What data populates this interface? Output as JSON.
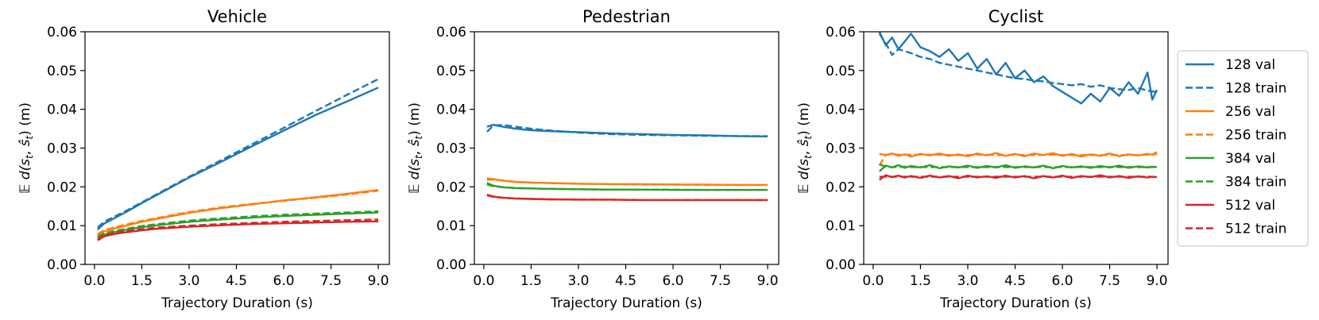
{
  "figure": {
    "legend": {
      "placement": "right",
      "entries": [
        {
          "label": "128 val",
          "color": "#1f77b4",
          "dash": false
        },
        {
          "label": "128 train",
          "color": "#1f77b4",
          "dash": true
        },
        {
          "label": "256 val",
          "color": "#ff7f0e",
          "dash": false
        },
        {
          "label": "256 train",
          "color": "#ff7f0e",
          "dash": true
        },
        {
          "label": "384 val",
          "color": "#2ca02c",
          "dash": false
        },
        {
          "label": "384 train",
          "color": "#2ca02c",
          "dash": true
        },
        {
          "label": "512 val",
          "color": "#d62728",
          "dash": false
        },
        {
          "label": "512 train",
          "color": "#d62728",
          "dash": true
        }
      ]
    }
  },
  "chart_data": [
    {
      "type": "line",
      "title": "Vehicle",
      "xlabel": "Trajectory Duration (s)",
      "ylabel": "E d(s_t, ŝ_t) (m)",
      "xlim": [
        -0.3,
        9.35
      ],
      "ylim": [
        0,
        0.06
      ],
      "xticks": [
        "0.0",
        "1.5",
        "3.0",
        "4.5",
        "6.0",
        "7.5",
        "9.0"
      ],
      "yticks": [
        "0.00",
        "0.01",
        "0.02",
        "0.03",
        "0.04",
        "0.05",
        "0.06"
      ],
      "grid": false,
      "x": [
        0.1,
        0.3,
        0.6,
        1.0,
        1.5,
        2.0,
        3.0,
        4.0,
        5.0,
        6.0,
        7.0,
        8.0,
        9.0
      ],
      "series": [
        {
          "name": "128 val",
          "color": "#1f77b4",
          "dash": false,
          "values": [
            0.009,
            0.0105,
            0.0118,
            0.0135,
            0.0158,
            0.018,
            0.0224,
            0.0264,
            0.0305,
            0.0345,
            0.0385,
            0.042,
            0.0456
          ]
        },
        {
          "name": "128 train",
          "color": "#1f77b4",
          "dash": true,
          "values": [
            0.0095,
            0.011,
            0.0122,
            0.0138,
            0.016,
            0.0182,
            0.0226,
            0.0268,
            0.031,
            0.0352,
            0.0395,
            0.0437,
            0.0478
          ]
        },
        {
          "name": "256 val",
          "color": "#ff7f0e",
          "dash": false,
          "values": [
            0.0075,
            0.0085,
            0.0092,
            0.01,
            0.011,
            0.0118,
            0.0133,
            0.0145,
            0.0155,
            0.0165,
            0.0173,
            0.0182,
            0.0192
          ]
        },
        {
          "name": "256 train",
          "color": "#ff7f0e",
          "dash": true,
          "values": [
            0.0078,
            0.0088,
            0.0095,
            0.0103,
            0.0112,
            0.012,
            0.0135,
            0.0147,
            0.0156,
            0.0164,
            0.0172,
            0.018,
            0.019
          ]
        },
        {
          "name": "384 val",
          "color": "#2ca02c",
          "dash": false,
          "values": [
            0.0068,
            0.0077,
            0.0083,
            0.0089,
            0.0096,
            0.0101,
            0.011,
            0.0116,
            0.0121,
            0.0125,
            0.0128,
            0.0131,
            0.0134
          ]
        },
        {
          "name": "384 train",
          "color": "#2ca02c",
          "dash": true,
          "values": [
            0.0072,
            0.008,
            0.0086,
            0.0092,
            0.0099,
            0.0104,
            0.0113,
            0.0119,
            0.0124,
            0.0128,
            0.0131,
            0.0134,
            0.0137
          ]
        },
        {
          "name": "512 val",
          "color": "#d62728",
          "dash": false,
          "values": [
            0.0062,
            0.0072,
            0.0078,
            0.0083,
            0.0088,
            0.0092,
            0.0097,
            0.0101,
            0.0104,
            0.0106,
            0.0108,
            0.011,
            0.0111
          ]
        },
        {
          "name": "512 train",
          "color": "#d62728",
          "dash": true,
          "values": [
            0.0065,
            0.0075,
            0.0081,
            0.0086,
            0.0091,
            0.0095,
            0.01,
            0.0104,
            0.0107,
            0.011,
            0.0112,
            0.0114,
            0.0116
          ]
        }
      ]
    },
    {
      "type": "line",
      "title": "Pedestrian",
      "xlabel": "Trajectory Duration (s)",
      "ylabel": "E d(s_t, ŝ_t) (m)",
      "xlim": [
        -0.3,
        9.35
      ],
      "ylim": [
        0,
        0.06
      ],
      "xticks": [
        "0.0",
        "1.5",
        "3.0",
        "4.5",
        "6.0",
        "7.5",
        "9.0"
      ],
      "yticks": [
        "0.00",
        "0.01",
        "0.02",
        "0.03",
        "0.04",
        "0.05",
        "0.06"
      ],
      "grid": false,
      "x": [
        0.1,
        0.3,
        0.6,
        1.0,
        1.5,
        2.0,
        3.0,
        4.0,
        5.0,
        6.0,
        7.0,
        8.0,
        9.0
      ],
      "series": [
        {
          "name": "128 val",
          "color": "#1f77b4",
          "dash": false,
          "values": [
            0.0355,
            0.036,
            0.0355,
            0.035,
            0.0346,
            0.0344,
            0.0341,
            0.0338,
            0.0336,
            0.0334,
            0.0333,
            0.0331,
            0.033
          ]
        },
        {
          "name": "128 train",
          "color": "#1f77b4",
          "dash": true,
          "values": [
            0.0342,
            0.0358,
            0.036,
            0.0355,
            0.035,
            0.0346,
            0.034,
            0.0336,
            0.0334,
            0.0333,
            0.0332,
            0.0331,
            0.0331
          ]
        },
        {
          "name": "256 val",
          "color": "#ff7f0e",
          "dash": false,
          "values": [
            0.0222,
            0.022,
            0.0216,
            0.0213,
            0.0211,
            0.021,
            0.0208,
            0.0207,
            0.0207,
            0.0206,
            0.0206,
            0.0205,
            0.0205
          ]
        },
        {
          "name": "256 train",
          "color": "#ff7f0e",
          "dash": true,
          "values": [
            0.0218,
            0.0219,
            0.0216,
            0.0213,
            0.0211,
            0.021,
            0.0208,
            0.0207,
            0.0206,
            0.0206,
            0.0205,
            0.0205,
            0.0205
          ]
        },
        {
          "name": "384 val",
          "color": "#2ca02c",
          "dash": false,
          "values": [
            0.021,
            0.0203,
            0.0199,
            0.0197,
            0.0196,
            0.0195,
            0.0194,
            0.0193,
            0.0193,
            0.0192,
            0.0192,
            0.0192,
            0.0192
          ]
        },
        {
          "name": "384 train",
          "color": "#2ca02c",
          "dash": true,
          "values": [
            0.0206,
            0.0202,
            0.0199,
            0.0197,
            0.0196,
            0.0195,
            0.0194,
            0.0193,
            0.0193,
            0.0193,
            0.0192,
            0.0192,
            0.0192
          ]
        },
        {
          "name": "512 val",
          "color": "#d62728",
          "dash": false,
          "values": [
            0.018,
            0.0175,
            0.0172,
            0.017,
            0.0169,
            0.0168,
            0.0167,
            0.0167,
            0.0166,
            0.0166,
            0.0166,
            0.0166,
            0.0166
          ]
        },
        {
          "name": "512 train",
          "color": "#d62728",
          "dash": true,
          "values": [
            0.0178,
            0.0174,
            0.0172,
            0.017,
            0.0169,
            0.0168,
            0.0167,
            0.0167,
            0.0166,
            0.0166,
            0.0166,
            0.0166,
            0.0166
          ]
        }
      ]
    },
    {
      "type": "line",
      "title": "Cyclist",
      "xlabel": "Trajectory Duration (s)",
      "ylabel": "E d(s_t, ŝ_t) (m)",
      "xlim": [
        -0.3,
        9.35
      ],
      "ylim": [
        0,
        0.06
      ],
      "xticks": [
        "0.0",
        "1.5",
        "3.0",
        "4.5",
        "6.0",
        "7.5",
        "9.0"
      ],
      "yticks": [
        "0.00",
        "0.01",
        "0.02",
        "0.03",
        "0.04",
        "0.05",
        "0.06"
      ],
      "grid": false,
      "x": [
        0.2,
        0.4,
        0.6,
        0.8,
        1.0,
        1.2,
        1.5,
        1.8,
        2.1,
        2.4,
        2.7,
        3.0,
        3.3,
        3.6,
        3.9,
        4.2,
        4.5,
        4.8,
        5.1,
        5.4,
        5.7,
        6.0,
        6.3,
        6.6,
        6.9,
        7.2,
        7.5,
        7.8,
        8.1,
        8.4,
        8.7,
        8.85,
        9.0
      ],
      "series": [
        {
          "name": "128 val",
          "color": "#1f77b4",
          "dash": false,
          "values": [
            0.06,
            0.0565,
            0.0585,
            0.0555,
            0.0575,
            0.0595,
            0.056,
            0.055,
            0.0535,
            0.0555,
            0.0525,
            0.0545,
            0.0505,
            0.053,
            0.049,
            0.052,
            0.048,
            0.05,
            0.047,
            0.0485,
            0.046,
            0.0445,
            0.043,
            0.0415,
            0.044,
            0.042,
            0.0455,
            0.0435,
            0.047,
            0.044,
            0.0495,
            0.0425,
            0.045
          ]
        },
        {
          "name": "128 train",
          "color": "#1f77b4",
          "dash": true,
          "values": [
            0.0595,
            0.057,
            0.054,
            0.0555,
            0.055,
            0.0545,
            0.0535,
            0.053,
            0.052,
            0.0515,
            0.051,
            0.0505,
            0.05,
            0.0495,
            0.049,
            0.0485,
            0.048,
            0.0478,
            0.0474,
            0.0472,
            0.0468,
            0.0465,
            0.0462,
            0.0465,
            0.0458,
            0.0462,
            0.0455,
            0.0452,
            0.045,
            0.0455,
            0.0448,
            0.0446,
            0.0445
          ]
        },
        {
          "name": "256 val",
          "color": "#ff7f0e",
          "dash": false,
          "values": [
            0.0285,
            0.0282,
            0.0286,
            0.028,
            0.0284,
            0.0278,
            0.0285,
            0.0281,
            0.0286,
            0.028,
            0.0284,
            0.0279,
            0.0286,
            0.0281,
            0.0287,
            0.028,
            0.0285,
            0.0279,
            0.0286,
            0.0282,
            0.0287,
            0.028,
            0.0285,
            0.0278,
            0.0284,
            0.028,
            0.0286,
            0.0279,
            0.0284,
            0.0281,
            0.0285,
            0.0283,
            0.029
          ]
        },
        {
          "name": "256 train",
          "color": "#ff7f0e",
          "dash": true,
          "values": [
            0.0255,
            0.0283,
            0.0284,
            0.0283,
            0.0283,
            0.0283,
            0.0283,
            0.0283,
            0.0283,
            0.0282,
            0.0282,
            0.0282,
            0.0283,
            0.0283,
            0.0282,
            0.0282,
            0.0283,
            0.0282,
            0.0282,
            0.0282,
            0.0283,
            0.0282,
            0.0282,
            0.0282,
            0.0282,
            0.0282,
            0.0282,
            0.0282,
            0.0282,
            0.0282,
            0.0283,
            0.0283,
            0.0285
          ]
        },
        {
          "name": "384 val",
          "color": "#2ca02c",
          "dash": false,
          "values": [
            0.024,
            0.0255,
            0.025,
            0.0256,
            0.0249,
            0.0254,
            0.025,
            0.0256,
            0.0248,
            0.0253,
            0.025,
            0.0255,
            0.0249,
            0.0254,
            0.025,
            0.0256,
            0.0249,
            0.0253,
            0.025,
            0.0255,
            0.0248,
            0.0254,
            0.025,
            0.0253,
            0.0249,
            0.0254,
            0.025,
            0.0255,
            0.0249,
            0.0253,
            0.025,
            0.0252,
            0.0251
          ]
        },
        {
          "name": "384 train",
          "color": "#2ca02c",
          "dash": true,
          "values": [
            0.0258,
            0.0252,
            0.0251,
            0.0251,
            0.0252,
            0.0251,
            0.0251,
            0.0251,
            0.0251,
            0.0251,
            0.0251,
            0.0251,
            0.0251,
            0.0251,
            0.0251,
            0.0251,
            0.0251,
            0.0251,
            0.0251,
            0.0251,
            0.0251,
            0.0251,
            0.0251,
            0.0251,
            0.0251,
            0.0251,
            0.0251,
            0.0251,
            0.0251,
            0.0251,
            0.0251,
            0.0251,
            0.0251
          ]
        },
        {
          "name": "512 val",
          "color": "#d62728",
          "dash": false,
          "values": [
            0.0218,
            0.023,
            0.0225,
            0.0229,
            0.0224,
            0.0228,
            0.0223,
            0.0229,
            0.0224,
            0.0228,
            0.0222,
            0.0229,
            0.0224,
            0.0227,
            0.0223,
            0.0229,
            0.0224,
            0.0228,
            0.0222,
            0.0228,
            0.0224,
            0.0229,
            0.0223,
            0.0228,
            0.0225,
            0.023,
            0.0224,
            0.0228,
            0.0223,
            0.0227,
            0.0224,
            0.0226,
            0.0225
          ]
        },
        {
          "name": "512 train",
          "color": "#d62728",
          "dash": true,
          "values": [
            0.0226,
            0.0226,
            0.0226,
            0.0226,
            0.0226,
            0.0226,
            0.0226,
            0.0226,
            0.0226,
            0.0226,
            0.0226,
            0.0226,
            0.0226,
            0.0226,
            0.0226,
            0.0226,
            0.0226,
            0.0226,
            0.0226,
            0.0226,
            0.0226,
            0.0226,
            0.0226,
            0.0226,
            0.0226,
            0.0226,
            0.0226,
            0.0226,
            0.0226,
            0.0226,
            0.0226,
            0.0226,
            0.0226
          ]
        }
      ]
    }
  ]
}
